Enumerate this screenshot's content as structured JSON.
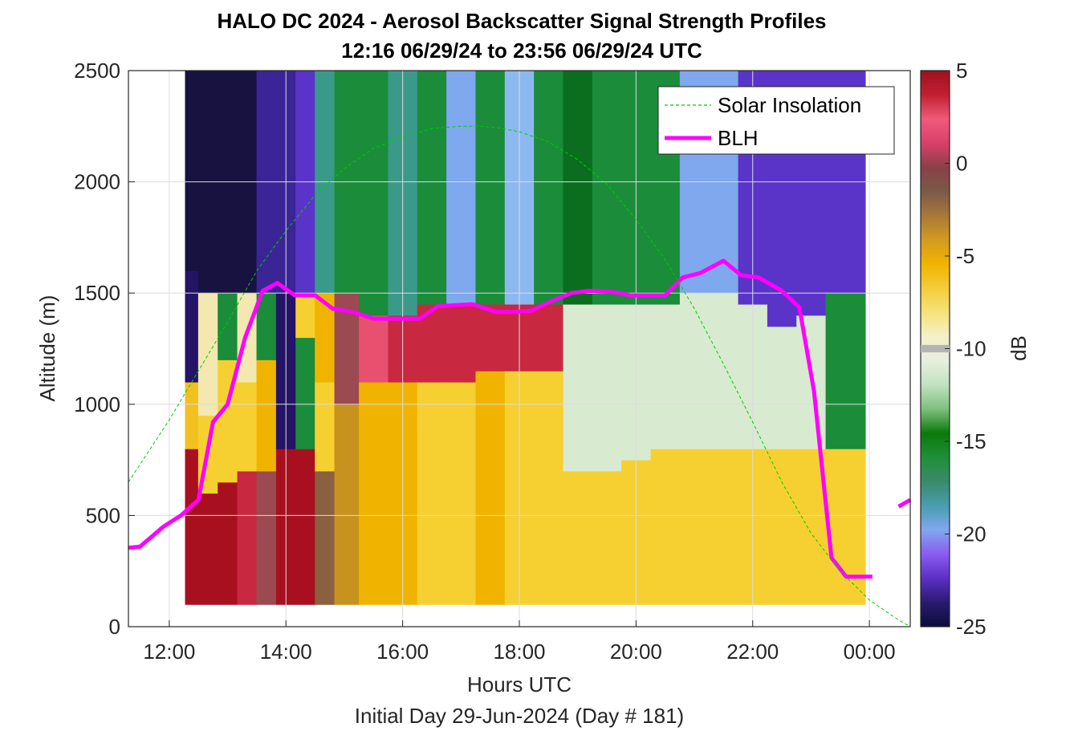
{
  "chart_data": {
    "type": "heatmap",
    "title_line1": "HALO DC 2024 - Aerosol Backscatter Signal Strength Profiles",
    "title_line2": "12:16 06/29/24 to 23:56 06/29/24  UTC",
    "xlabel": "Hours UTC",
    "subxlabel": "Initial Day 29-Jun-2024 (Day # 181)",
    "ylabel": "Altitude (m)",
    "colorbar_label": "dB",
    "xlim": [
      11.3,
      24.7
    ],
    "ylim": [
      0,
      2500
    ],
    "x_ticks": [
      12,
      14,
      16,
      18,
      20,
      22,
      24
    ],
    "x_tick_labels": [
      "12:00",
      "14:00",
      "16:00",
      "18:00",
      "20:00",
      "22:00",
      "00:00"
    ],
    "y_ticks": [
      0,
      500,
      1000,
      1500,
      2000,
      2500
    ],
    "y_tick_labels": [
      "0",
      "500",
      "1000",
      "1500",
      "2000",
      "2500"
    ],
    "clim": [
      -25,
      5
    ],
    "cb_ticks": [
      5,
      0,
      -5,
      -10,
      -15,
      -20,
      -25
    ],
    "cb_tick_labels": [
      "5",
      "0",
      "-5",
      "-10",
      "-15",
      "-20",
      "-25"
    ],
    "grid": true,
    "legend_position": "top-right",
    "legend": [
      "Solar Insolation",
      "BLH"
    ],
    "colors": {
      "blh": "#ff00ff",
      "solar": "#00cc00",
      "colormap": [
        "#0d0d3a",
        "#2a1a6e",
        "#5b2fc4",
        "#8a5cf0",
        "#7fa8ee",
        "#4a9db0",
        "#3a8a6a",
        "#1f8f3a",
        "#0a7a0a",
        "#7fbf7f",
        "#bfe3bf",
        "#e8efdf",
        "#f4f0c8",
        "#f6e27a",
        "#f5cc3a",
        "#f0b400",
        "#d49a20",
        "#a87838",
        "#7a5a48",
        "#8a4048",
        "#d8406a",
        "#f05a7a",
        "#c02030",
        "#a01020"
      ]
    },
    "heatmap": {
      "x_start": 12.27,
      "x_end": 23.93,
      "y_start": 100,
      "y_end": 2500,
      "columns": [
        {
          "t": 12.33,
          "blocks": [
            [
              100,
              800,
              "dark-red"
            ],
            [
              800,
              1100,
              "orange-yellow"
            ],
            [
              1100,
              1600,
              "dark-blue"
            ],
            [
              1600,
              2500,
              "navy"
            ]
          ]
        },
        {
          "t": 12.66,
          "blocks": [
            [
              100,
              600,
              "dark-red"
            ],
            [
              600,
              950,
              "yellow"
            ],
            [
              950,
              1500,
              "yellow-white"
            ],
            [
              1500,
              2500,
              "navy"
            ]
          ]
        },
        {
          "t": 13.0,
          "blocks": [
            [
              100,
              650,
              "dark-red"
            ],
            [
              650,
              1200,
              "yellow"
            ],
            [
              1200,
              1500,
              "green"
            ],
            [
              1500,
              2500,
              "navy"
            ]
          ]
        },
        {
          "t": 13.33,
          "blocks": [
            [
              100,
              700,
              "red"
            ],
            [
              700,
              1100,
              "yellow"
            ],
            [
              1100,
              1500,
              "yellow-white"
            ],
            [
              1500,
              2500,
              "navy"
            ]
          ]
        },
        {
          "t": 13.66,
          "blocks": [
            [
              100,
              700,
              "red-brown"
            ],
            [
              700,
              1200,
              "orange"
            ],
            [
              1200,
              1500,
              "green"
            ],
            [
              1500,
              2500,
              "blue-purple"
            ]
          ]
        },
        {
          "t": 14.0,
          "blocks": [
            [
              100,
              800,
              "dark-red"
            ],
            [
              800,
              1500,
              "dark-blue"
            ],
            [
              1500,
              2500,
              "blue-purple"
            ]
          ]
        },
        {
          "t": 14.33,
          "blocks": [
            [
              100,
              800,
              "dark-red"
            ],
            [
              800,
              1300,
              "green"
            ],
            [
              1300,
              1500,
              "yellow"
            ],
            [
              1500,
              2500,
              "purple"
            ]
          ]
        },
        {
          "t": 14.66,
          "blocks": [
            [
              100,
              700,
              "brown"
            ],
            [
              700,
              1100,
              "yellow"
            ],
            [
              1100,
              1500,
              "orange"
            ],
            [
              1500,
              2500,
              "teal"
            ]
          ]
        },
        {
          "t": 15.0,
          "blocks": [
            [
              100,
              1000,
              "orange-brown"
            ],
            [
              1000,
              1500,
              "red-brown"
            ],
            [
              1500,
              2500,
              "green"
            ]
          ]
        },
        {
          "t": 15.5,
          "blocks": [
            [
              100,
              1100,
              "orange"
            ],
            [
              1100,
              1400,
              "pink"
            ],
            [
              1400,
              2500,
              "green"
            ]
          ]
        },
        {
          "t": 16.0,
          "blocks": [
            [
              100,
              1100,
              "orange"
            ],
            [
              1100,
              1400,
              "red"
            ],
            [
              1400,
              2500,
              "teal"
            ]
          ]
        },
        {
          "t": 16.5,
          "blocks": [
            [
              100,
              1100,
              "yellow"
            ],
            [
              1100,
              1450,
              "red"
            ],
            [
              1450,
              2500,
              "green"
            ]
          ]
        },
        {
          "t": 17.0,
          "blocks": [
            [
              100,
              1100,
              "yellow"
            ],
            [
              1100,
              1450,
              "red"
            ],
            [
              1450,
              2500,
              "blue"
            ]
          ]
        },
        {
          "t": 17.5,
          "blocks": [
            [
              100,
              1150,
              "orange"
            ],
            [
              1150,
              1450,
              "red"
            ],
            [
              1450,
              2500,
              "green"
            ]
          ]
        },
        {
          "t": 18.0,
          "blocks": [
            [
              100,
              1150,
              "yellow"
            ],
            [
              1150,
              1450,
              "red"
            ],
            [
              1450,
              2500,
              "light-blue"
            ]
          ]
        },
        {
          "t": 18.5,
          "blocks": [
            [
              100,
              1150,
              "yellow"
            ],
            [
              1150,
              1450,
              "red"
            ],
            [
              1450,
              2500,
              "green"
            ]
          ]
        },
        {
          "t": 19.0,
          "blocks": [
            [
              100,
              700,
              "yellow"
            ],
            [
              700,
              1450,
              "light-green"
            ],
            [
              1450,
              2500,
              "dark-green"
            ]
          ]
        },
        {
          "t": 19.5,
          "blocks": [
            [
              100,
              700,
              "yellow"
            ],
            [
              700,
              1450,
              "light-green"
            ],
            [
              1450,
              2500,
              "green"
            ]
          ]
        },
        {
          "t": 20.0,
          "blocks": [
            [
              100,
              750,
              "yellow"
            ],
            [
              750,
              1450,
              "light-green"
            ],
            [
              1450,
              2500,
              "green"
            ]
          ]
        },
        {
          "t": 20.5,
          "blocks": [
            [
              100,
              800,
              "yellow"
            ],
            [
              800,
              1450,
              "light-green"
            ],
            [
              1450,
              2500,
              "green"
            ]
          ]
        },
        {
          "t": 21.0,
          "blocks": [
            [
              100,
              800,
              "yellow"
            ],
            [
              800,
              1500,
              "light-green"
            ],
            [
              1500,
              2500,
              "blue"
            ]
          ]
        },
        {
          "t": 21.5,
          "blocks": [
            [
              100,
              800,
              "yellow"
            ],
            [
              800,
              1500,
              "light-green"
            ],
            [
              1500,
              2500,
              "blue"
            ]
          ]
        },
        {
          "t": 22.0,
          "blocks": [
            [
              100,
              800,
              "yellow"
            ],
            [
              800,
              1450,
              "light-green"
            ],
            [
              1450,
              2500,
              "purple"
            ]
          ]
        },
        {
          "t": 22.5,
          "blocks": [
            [
              100,
              800,
              "yellow"
            ],
            [
              800,
              1350,
              "light-green"
            ],
            [
              1350,
              2500,
              "purple"
            ]
          ]
        },
        {
          "t": 23.0,
          "blocks": [
            [
              100,
              800,
              "yellow"
            ],
            [
              800,
              1400,
              "light-green"
            ],
            [
              1400,
              2500,
              "purple"
            ]
          ]
        },
        {
          "t": 23.5,
          "blocks": [
            [
              100,
              800,
              "yellow"
            ],
            [
              800,
              1500,
              "green"
            ],
            [
              1500,
              2500,
              "purple"
            ]
          ]
        }
      ]
    },
    "series": [
      {
        "name": "BLH",
        "x": [
          11.3,
          11.5,
          11.9,
          12.2,
          12.5,
          12.75,
          13.0,
          13.3,
          13.6,
          13.85,
          14.15,
          14.5,
          14.8,
          15.15,
          15.5,
          15.9,
          16.3,
          16.6,
          16.9,
          17.2,
          17.6,
          17.9,
          18.2,
          18.6,
          18.9,
          19.2,
          19.6,
          19.9,
          20.2,
          20.5,
          20.8,
          21.1,
          21.5,
          21.8,
          22.1,
          22.5,
          22.8,
          23.05,
          23.35,
          23.6,
          23.85,
          24.05
        ],
        "y": [
          355,
          360,
          450,
          500,
          570,
          920,
          1000,
          1300,
          1510,
          1545,
          1490,
          1490,
          1430,
          1415,
          1385,
          1385,
          1385,
          1440,
          1445,
          1450,
          1415,
          1415,
          1420,
          1470,
          1500,
          1510,
          1505,
          1490,
          1490,
          1490,
          1570,
          1590,
          1645,
          1580,
          1570,
          1510,
          1435,
          1060,
          310,
          225,
          225,
          225
        ]
      },
      {
        "name": "BLH-segment-2",
        "x": [
          24.5,
          24.7
        ],
        "y": [
          540,
          570
        ]
      },
      {
        "name": "Solar Insolation",
        "x": [
          11.3,
          12.0,
          12.5,
          13.0,
          13.5,
          14.0,
          14.5,
          15.0,
          15.5,
          16.0,
          16.5,
          17.0,
          17.3,
          17.6,
          18.0,
          18.5,
          19.0,
          19.5,
          20.0,
          20.5,
          21.0,
          21.5,
          22.0,
          22.5,
          23.0,
          23.5,
          24.0,
          24.5,
          24.7
        ],
        "y": [
          650,
          930,
          1150,
          1370,
          1600,
          1780,
          1940,
          2060,
          2150,
          2200,
          2240,
          2250,
          2250,
          2245,
          2225,
          2180,
          2100,
          1990,
          1830,
          1650,
          1430,
          1180,
          920,
          650,
          420,
          250,
          120,
          30,
          0
        ]
      }
    ]
  }
}
